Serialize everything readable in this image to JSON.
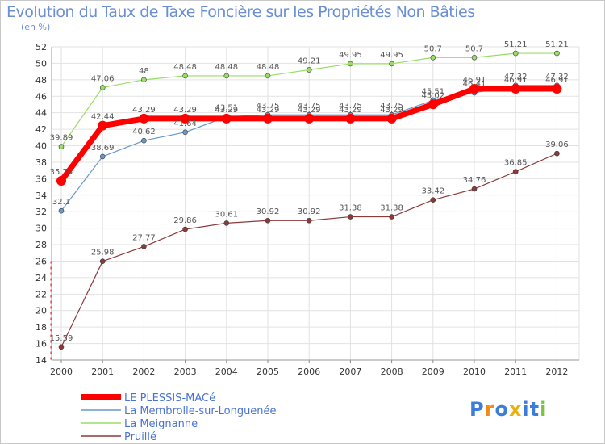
{
  "chart_data": {
    "type": "line",
    "title": "Evolution du Taux de Taxe Foncière sur les Propriétés Non Bâties",
    "ylabel": "(en %)",
    "xlabel": "",
    "ylim": [
      14,
      52
    ],
    "yticks": [
      14,
      16,
      18,
      20,
      22,
      24,
      26,
      28,
      30,
      32,
      34,
      36,
      38,
      40,
      42,
      44,
      46,
      48,
      50,
      52
    ],
    "x": [
      "2000",
      "2001",
      "2002",
      "2003",
      "2004",
      "2005",
      "2006",
      "2007",
      "2008",
      "2009",
      "2010",
      "2011",
      "2012"
    ],
    "grid": true,
    "legend_position": "bottom-left",
    "series": [
      {
        "name": "LE PLESSIS-MACé",
        "color": "#ff0000",
        "values": [
          35.74,
          42.44,
          43.29,
          43.29,
          43.29,
          43.29,
          43.29,
          43.29,
          43.29,
          45.02,
          46.91,
          46.91,
          46.91
        ],
        "labels": [
          "35.74",
          "42.44",
          "43.29",
          "43.29",
          "43.29",
          "43.29",
          "43.29",
          "43.29",
          "43.29",
          "45.02",
          "46.91",
          "46.91",
          "46.91"
        ]
      },
      {
        "name": "La Membrolle-sur-Longuenée",
        "color": "#6699cc",
        "values": [
          32.1,
          38.69,
          40.62,
          41.64,
          43.51,
          43.75,
          43.75,
          43.75,
          43.75,
          45.51,
          46.41,
          47.32,
          47.32
        ],
        "labels": [
          "32.1",
          "38.69",
          "40.62",
          "41.64",
          "43.51",
          "43.75",
          "43.75",
          "43.75",
          "43.75",
          "45.51",
          "46.41",
          "47.32",
          "47.32"
        ]
      },
      {
        "name": "La Meignanne",
        "color": "#99dd66",
        "values": [
          39.89,
          47.06,
          48,
          48.48,
          48.48,
          48.48,
          49.21,
          49.95,
          49.95,
          50.7,
          50.7,
          51.21,
          51.21
        ],
        "labels": [
          "39.89",
          "47.06",
          "48",
          "48.48",
          "48.48",
          "48.48",
          "49.21",
          "49.95",
          "49.95",
          "50.7",
          "50.7",
          "51.21",
          "51.21"
        ]
      },
      {
        "name": "Pruillé",
        "color": "#8b3a3a",
        "values": [
          15.59,
          25.98,
          27.77,
          29.86,
          30.61,
          30.92,
          30.92,
          31.38,
          31.38,
          33.42,
          34.76,
          36.85,
          39.06
        ],
        "labels": [
          "15.59",
          "25.98",
          "27.77",
          "29.86",
          "30.61",
          "30.92",
          "30.92",
          "31.38",
          "31.38",
          "33.42",
          "34.76",
          "36.85",
          "39.06"
        ]
      }
    ]
  },
  "logo": {
    "text": "Proxiti",
    "letter_colors": [
      "#3b7dd8",
      "#f08a1c",
      "#3b7dd8",
      "#e8b10c",
      "#3b7dd8",
      "#3b7dd8",
      "#7cc242"
    ]
  }
}
